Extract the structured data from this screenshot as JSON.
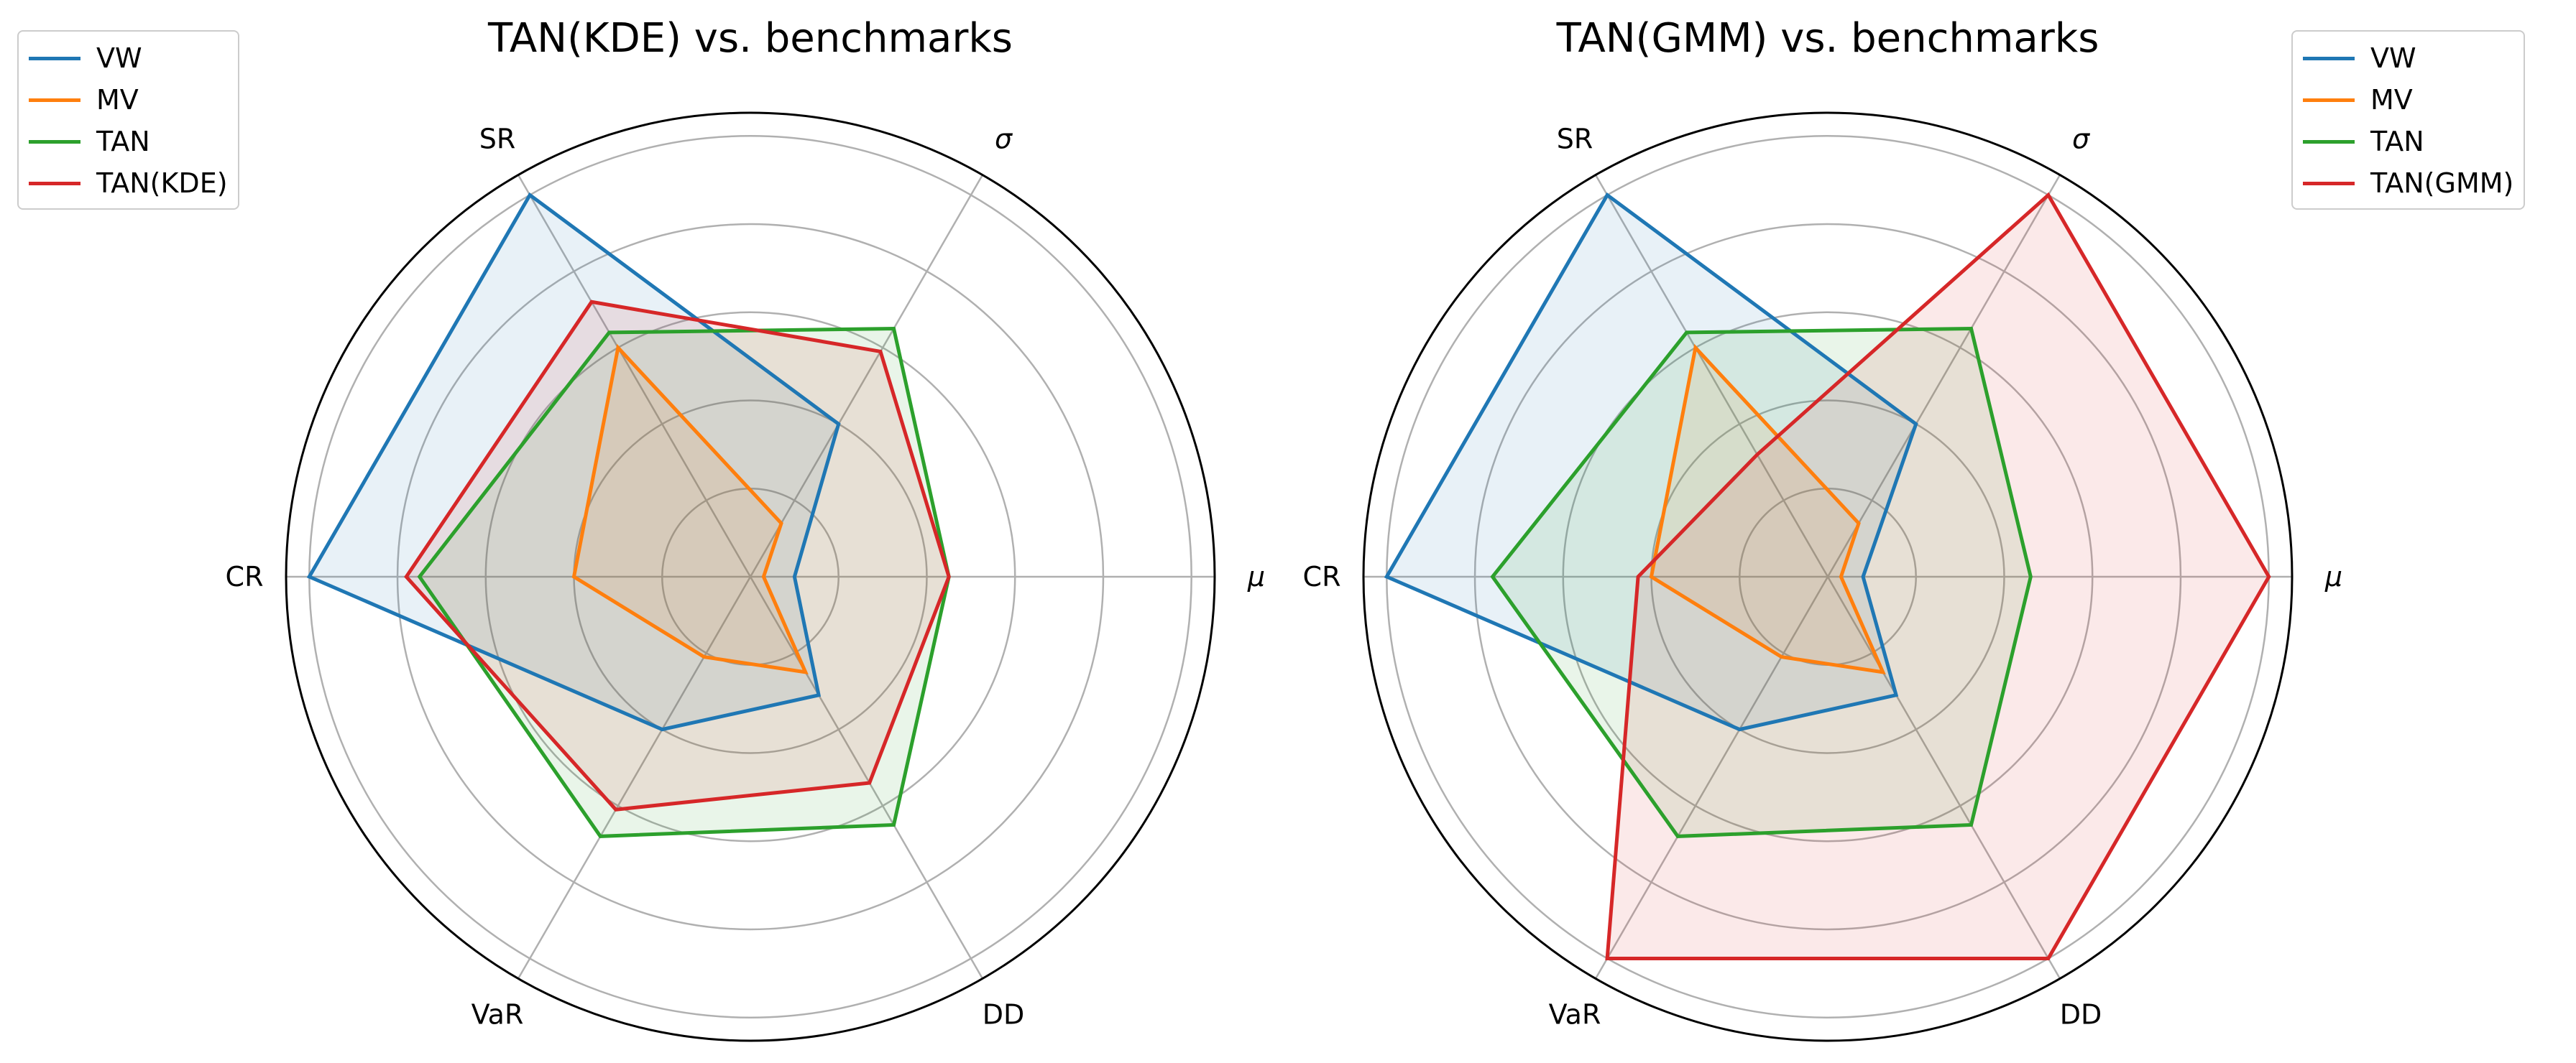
{
  "chart_data": [
    {
      "type": "radar",
      "title": "TAN(KDE) vs. benchmarks",
      "axes": [
        "μ",
        "σ",
        "SR",
        "CR",
        "VaR",
        "DD"
      ],
      "radial_range": [
        0,
        1
      ],
      "radial_gridlines": [
        0.2,
        0.4,
        0.6,
        0.8,
        1.0
      ],
      "grid": true,
      "legend_position": "top-left",
      "series": [
        {
          "name": "VW",
          "color": "#1f77b4",
          "values": [
            0.1,
            0.4,
            1.0,
            1.0,
            0.4,
            0.31
          ]
        },
        {
          "name": "MV",
          "color": "#ff7f0e",
          "values": [
            0.03,
            0.14,
            0.6,
            0.4,
            0.21,
            0.25
          ]
        },
        {
          "name": "TAN",
          "color": "#2ca02c",
          "values": [
            0.45,
            0.65,
            0.64,
            0.75,
            0.68,
            0.65
          ]
        },
        {
          "name": "TAN(KDE)",
          "color": "#d62728",
          "values": [
            0.45,
            0.59,
            0.72,
            0.78,
            0.61,
            0.54
          ]
        }
      ]
    },
    {
      "type": "radar",
      "title": "TAN(GMM) vs. benchmarks",
      "axes": [
        "μ",
        "σ",
        "SR",
        "CR",
        "VaR",
        "DD"
      ],
      "radial_range": [
        0,
        1
      ],
      "radial_gridlines": [
        0.2,
        0.4,
        0.6,
        0.8,
        1.0
      ],
      "grid": true,
      "legend_position": "top-right",
      "series": [
        {
          "name": "VW",
          "color": "#1f77b4",
          "values": [
            0.08,
            0.4,
            1.0,
            1.0,
            0.4,
            0.31
          ]
        },
        {
          "name": "MV",
          "color": "#ff7f0e",
          "values": [
            0.03,
            0.14,
            0.6,
            0.4,
            0.21,
            0.25
          ]
        },
        {
          "name": "TAN",
          "color": "#2ca02c",
          "values": [
            0.46,
            0.65,
            0.64,
            0.76,
            0.68,
            0.65
          ]
        },
        {
          "name": "TAN(GMM)",
          "color": "#d62728",
          "values": [
            1.0,
            1.0,
            0.32,
            0.43,
            1.0,
            1.0
          ]
        }
      ]
    }
  ]
}
